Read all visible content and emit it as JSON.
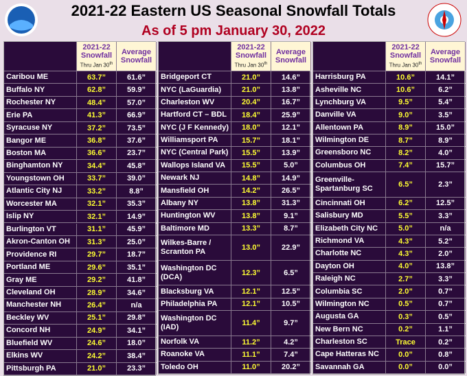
{
  "header": {
    "title": "2021-22 Eastern US Seasonal Snowfall Totals",
    "subtitle": "As of 5 pm January 30, 2022"
  },
  "columns": {
    "current": {
      "line1": "2021-22",
      "line2": "Snowfall",
      "note": "Thru Jan 30",
      "note_sup": "th"
    },
    "average": {
      "line1": "Average",
      "line2": "Snowfall"
    }
  },
  "tables": [
    {
      "rows": [
        [
          "Caribou ME",
          "63.7”",
          "61.6”"
        ],
        [
          "Buffalo NY",
          "62.8”",
          "59.9”"
        ],
        [
          "Rochester NY",
          "48.4”",
          "57.0”"
        ],
        [
          "Erie PA",
          "41.3”",
          "66.9”"
        ],
        [
          "Syracuse NY",
          "37.2”",
          "73.5”"
        ],
        [
          "Bangor ME",
          "36.8”",
          "37.6”"
        ],
        [
          "Boston MA",
          "36.6”",
          "23.7”"
        ],
        [
          "Binghamton NY",
          "34.4”",
          "45.8”"
        ],
        [
          "Youngstown OH",
          "33.7”",
          "39.0”"
        ],
        [
          "Atlantic City NJ",
          "33.2”",
          "8.8”"
        ],
        [
          "Worcester MA",
          "32.1”",
          "35.3”"
        ],
        [
          "Islip NY",
          "32.1”",
          "14.9”"
        ],
        [
          "Burlington VT",
          "31.1”",
          "45.9”"
        ],
        [
          "Akron-Canton OH",
          "31.3”",
          "25.0”"
        ],
        [
          "Providence RI",
          "29.7”",
          "18.7”"
        ],
        [
          "Portland ME",
          "29.6”",
          "35.1”"
        ],
        [
          "Gray ME",
          "29.2”",
          "41.8”"
        ],
        [
          "Cleveland OH",
          "28.9”",
          "34.6”"
        ],
        [
          "Manchester NH",
          "26.4”",
          "n/a"
        ],
        [
          "Beckley WV",
          "25.1”",
          "29.8”"
        ],
        [
          "Concord NH",
          "24.9”",
          "34.1”"
        ],
        [
          "Bluefield WV",
          "24.6”",
          "18.0”"
        ],
        [
          "Elkins WV",
          "24.2”",
          "38.4”"
        ],
        [
          "Pittsburgh PA",
          "21.0”",
          "23.3”"
        ]
      ]
    },
    {
      "rows": [
        [
          "Bridgeport CT",
          "21.0”",
          "14.6”"
        ],
        [
          "NYC (LaGuardia)",
          "21.0”",
          "13.8”"
        ],
        [
          "Charleston WV",
          "20.4”",
          "16.7”"
        ],
        [
          "Hartford CT – BDL",
          "18.4”",
          "25.9”"
        ],
        [
          "NYC (J F Kennedy)",
          "18.0”",
          "12.1”"
        ],
        [
          "Williamsport PA",
          "15.7”",
          "18.1”"
        ],
        [
          "NYC (Central Park)",
          "15.5”",
          "13.9”"
        ],
        [
          "Wallops Island VA",
          "15.5”",
          "5.0”"
        ],
        [
          "Newark NJ",
          "14.8”",
          "14.9”"
        ],
        [
          "Mansfield OH",
          "14.2”",
          "26.5”"
        ],
        [
          "Albany NY",
          "13.8”",
          "31.3”"
        ],
        [
          "Huntington WV",
          "13.8”",
          "9.1”"
        ],
        [
          "Baltimore MD",
          "13.3”",
          "8.7”"
        ],
        [
          "Wilkes-Barre /\nScranton PA",
          "13.0”",
          "22.9”"
        ],
        [
          "Washington DC\n(DCA)",
          "12.3”",
          "6.5”"
        ],
        [
          "Blacksburg VA",
          "12.1”",
          "12.5”"
        ],
        [
          "Philadelphia PA",
          "12.1”",
          "10.5”"
        ],
        [
          "Washington DC\n(IAD)",
          "11.4”",
          "9.7”"
        ],
        [
          "Norfolk VA",
          "11.2”",
          "4.2”"
        ],
        [
          "Roanoke VA",
          "11.1”",
          "7.4”"
        ],
        [
          "Toledo OH",
          "11.0”",
          "20.2”"
        ]
      ]
    },
    {
      "rows": [
        [
          "Harrisburg PA",
          "10.6”",
          "14.1”"
        ],
        [
          "Asheville NC",
          "10.6”",
          "6.2”"
        ],
        [
          "Lynchburg VA",
          "9.5”",
          "5.4”"
        ],
        [
          "Danville VA",
          "9.0”",
          "3.5”"
        ],
        [
          "Allentown PA",
          "8.9”",
          "15.0”"
        ],
        [
          "Wilmington DE",
          "8.7”",
          "8.9”"
        ],
        [
          "Greensboro NC",
          "8.2”",
          "4.0”"
        ],
        [
          "Columbus OH",
          "7.4”",
          "15.7”"
        ],
        [
          "Greenville-\nSpartanburg SC",
          "6.5”",
          "2.3”"
        ],
        [
          "Cincinnati OH",
          "6.2”",
          "12.5”"
        ],
        [
          "Salisbury MD",
          "5.5”",
          "3.3”"
        ],
        [
          "Elizabeth City NC",
          "5.0”",
          "n/a"
        ],
        [
          "Richmond VA",
          "4.3”",
          "5.2”"
        ],
        [
          "Charlotte NC",
          "4.3”",
          "2.0”"
        ],
        [
          "Dayton OH",
          "4.0”",
          "13.8”"
        ],
        [
          "Raleigh NC",
          "2.7”",
          "3.3”"
        ],
        [
          "Columbia SC",
          "2.0”",
          "0.7”"
        ],
        [
          "Wilmington NC",
          "0.5”",
          "0.7”"
        ],
        [
          "Augusta GA",
          "0.3”",
          "0.5”"
        ],
        [
          "New Bern NC",
          "0.2”",
          "1.1”"
        ],
        [
          "Charleston SC",
          "Trace",
          "0.2”"
        ],
        [
          "Cape Hatteras NC",
          "0.0”",
          "0.8”"
        ],
        [
          "Savannah GA",
          "0.0”",
          "0.0”"
        ]
      ]
    }
  ]
}
